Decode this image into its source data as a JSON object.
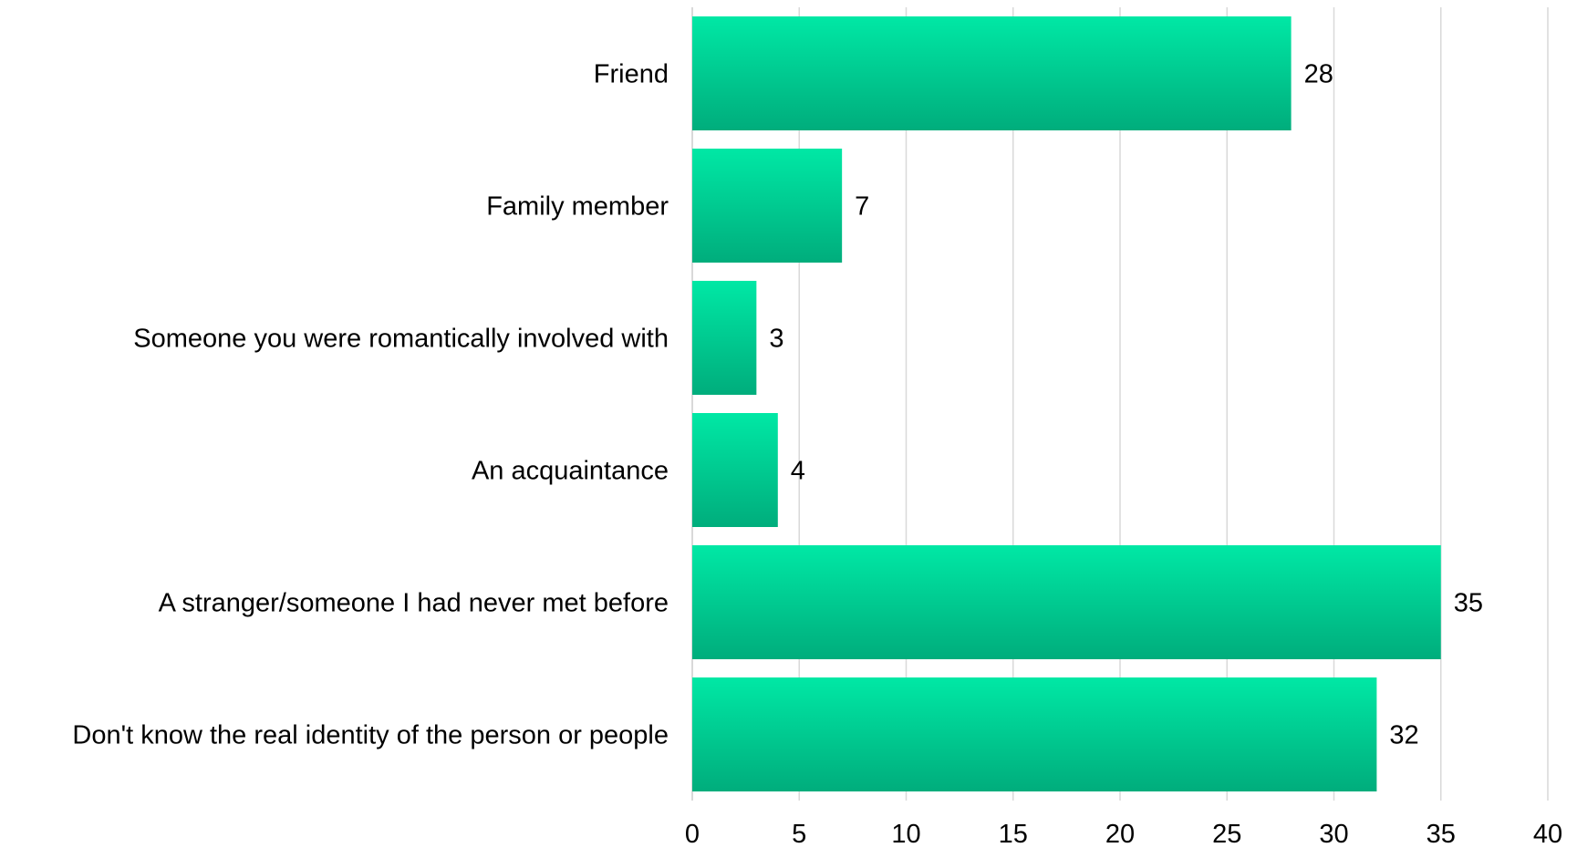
{
  "chart_data": {
    "type": "bar",
    "orientation": "horizontal",
    "categories": [
      "Friend",
      "Family member",
      "Someone you were romantically involved with",
      "An acquaintance",
      "A stranger/someone I had never met before",
      "Don't know the real identity of the person or people"
    ],
    "values": [
      28,
      7,
      3,
      4,
      35,
      32
    ],
    "value_labels": [
      "28",
      "7",
      "3",
      "4",
      "35",
      "32"
    ],
    "xlim": [
      0,
      40
    ],
    "xticks": [
      0,
      5,
      10,
      15,
      20,
      25,
      30,
      35,
      40
    ],
    "xtick_labels": [
      "0",
      "5",
      "10",
      "15",
      "20",
      "25",
      "30",
      "35",
      "40"
    ],
    "title": "",
    "xlabel": "",
    "ylabel": "",
    "grid": "vertical",
    "legend": "none",
    "colors": {
      "bar_top": "#00E8A5",
      "bar_bottom": "#00AD7C",
      "grid": "#D9D9D9",
      "text": "#000000"
    }
  }
}
